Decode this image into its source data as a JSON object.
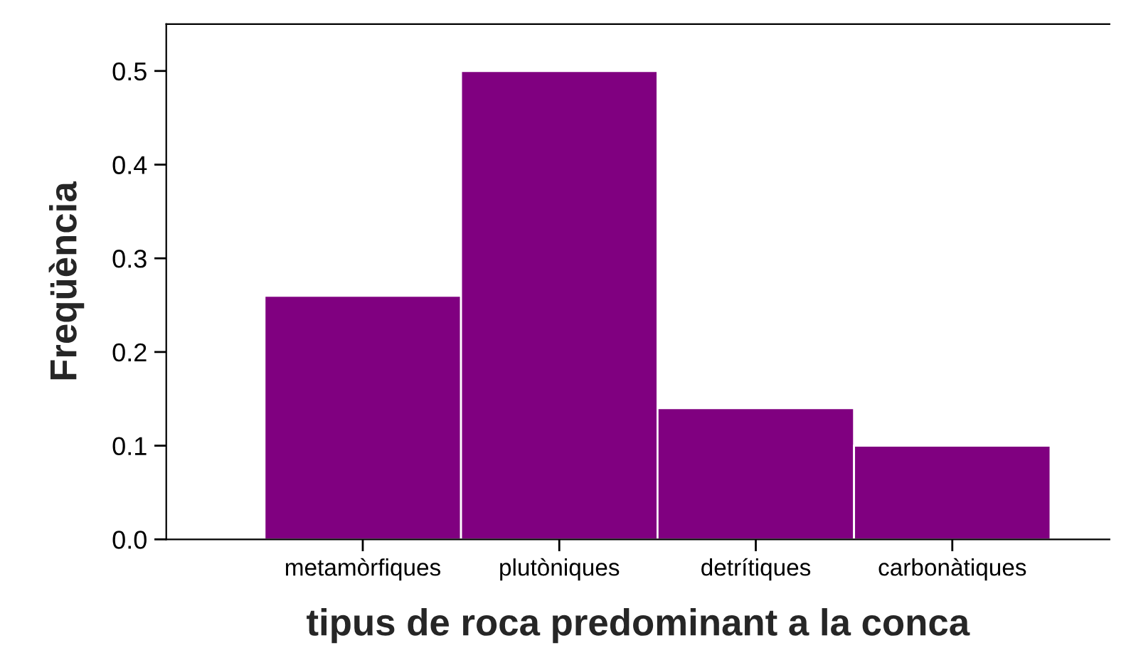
{
  "chart_data": {
    "type": "bar",
    "xlabel": "tipus de roca predominant a la conca",
    "ylabel": "Freqüència",
    "categories": [
      "metamòrfiques",
      "plutòniques",
      "detrítiques",
      "carbonàtiques"
    ],
    "values": [
      0.26,
      0.5,
      0.14,
      0.1
    ],
    "color": "#800080",
    "ylim": [
      0,
      0.55
    ],
    "yticks": [
      {
        "value": 0,
        "label": "0.0"
      },
      0.1,
      0.2,
      0.3,
      0.4,
      0.5
    ],
    "grid": false,
    "legend": false
  }
}
